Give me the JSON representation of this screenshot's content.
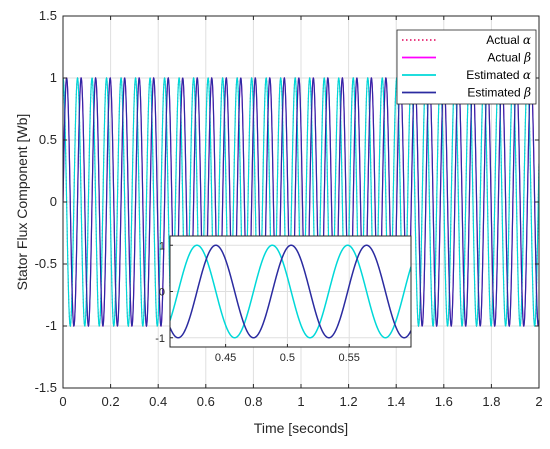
{
  "chart_data": {
    "type": "line",
    "title": "",
    "xlabel": "Time [seconds]",
    "ylabel": "Stator Flux Component [Wb]",
    "xlim": [
      0,
      2
    ],
    "ylim": [
      -1.5,
      1.5
    ],
    "xticks": [
      0,
      0.2,
      0.4,
      0.6,
      0.8,
      1,
      1.2,
      1.4,
      1.6,
      1.8,
      2
    ],
    "yticks": [
      -1.5,
      -1,
      -0.5,
      0,
      0.5,
      1,
      1.5
    ],
    "xtick_labels": [
      "0",
      "0.2",
      "0.4",
      "0.6",
      "0.8",
      "1",
      "1.2",
      "1.4",
      "1.6",
      "1.8",
      "2"
    ],
    "ytick_labels": [
      "-1.5",
      "-1",
      "-0.5",
      "0",
      "0.5",
      "1",
      "1.5"
    ],
    "grid": true,
    "legend_position": "top-right",
    "signal": {
      "amplitude": 1,
      "frequency_hz": 16.4
    },
    "series": [
      {
        "name": "Actual",
        "symbol": "α",
        "function": "cos",
        "color": "#e3005a",
        "style": "dotted"
      },
      {
        "name": "Actual",
        "symbol": "β",
        "function": "sin",
        "color": "#ff00ff",
        "style": "solid"
      },
      {
        "name": "Estimated",
        "symbol": "α",
        "function": "cos",
        "color": "#00d8d8",
        "style": "solid"
      },
      {
        "name": "Estimated",
        "symbol": "β",
        "function": "sin",
        "color": "#2b2ba0",
        "style": "solid"
      }
    ],
    "inset": {
      "xlim": [
        0.405,
        0.6
      ],
      "ylim": [
        -1.2,
        1.2
      ],
      "xticks": [
        0.45,
        0.5,
        0.55
      ],
      "yticks": [
        -1,
        0,
        1
      ],
      "xtick_labels": [
        "0.45",
        "0.5",
        "0.55"
      ],
      "ytick_labels": [
        "-1",
        "0",
        "1"
      ],
      "series_shown": [
        2,
        3
      ]
    }
  }
}
